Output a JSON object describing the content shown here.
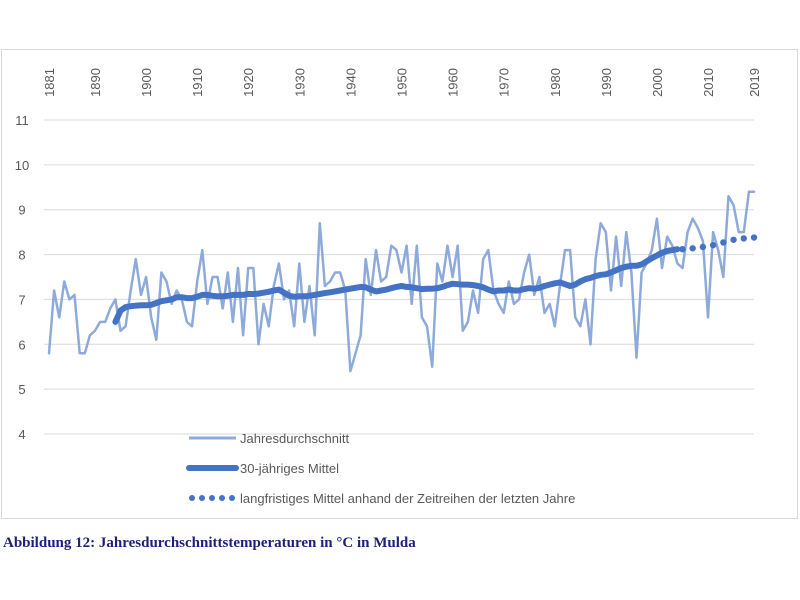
{
  "caption": "Abbildung 12: Jahresdurchschnittstemperaturen in °C in Mulda",
  "chart_data": {
    "type": "line",
    "title": "",
    "xlabel": "",
    "ylabel": "",
    "ylim": [
      4,
      11
    ],
    "xlim": [
      1881,
      2019
    ],
    "grid": true,
    "y_ticks": [
      "4",
      "5",
      "6",
      "7",
      "8",
      "9",
      "10",
      "11"
    ],
    "x_ticks": [
      "1881",
      "1890",
      "1900",
      "1910",
      "1920",
      "1930",
      "1940",
      "1950",
      "1960",
      "1970",
      "1980",
      "1990",
      "2000",
      "2010",
      "2019"
    ],
    "legend_position": "bottom",
    "colors": {
      "annual": "#8eaadb",
      "mean30": "#4472c4",
      "longterm": "#4472c4",
      "grid": "#d9d9d9",
      "caption": "#1f1f7a"
    },
    "series": [
      {
        "name": "Jahresdurchschnitt",
        "style": "thin-line",
        "x_start": 1881,
        "values": [
          5.8,
          7.2,
          6.6,
          7.4,
          7.0,
          7.1,
          5.8,
          5.8,
          6.2,
          6.3,
          6.5,
          6.5,
          6.8,
          7.0,
          6.3,
          6.4,
          7.2,
          7.9,
          7.1,
          7.5,
          6.6,
          6.1,
          7.6,
          7.4,
          6.9,
          7.2,
          7.0,
          6.5,
          6.4,
          7.4,
          8.1,
          6.9,
          7.5,
          7.5,
          6.8,
          7.6,
          6.5,
          7.7,
          6.2,
          7.7,
          7.7,
          6.0,
          6.9,
          6.4,
          7.3,
          7.8,
          7.0,
          7.2,
          6.4,
          7.8,
          6.5,
          7.3,
          6.2,
          8.7,
          7.3,
          7.4,
          7.6,
          7.6,
          7.2,
          5.4,
          5.8,
          6.2,
          7.9,
          7.1,
          8.1,
          7.4,
          7.5,
          8.2,
          8.1,
          7.6,
          8.2,
          6.9,
          8.2,
          6.6,
          6.4,
          5.5,
          7.8,
          7.4,
          8.2,
          7.5,
          8.2,
          6.3,
          6.5,
          7.2,
          6.7,
          7.9,
          8.1,
          7.2,
          6.9,
          6.7,
          7.4,
          6.9,
          7.0,
          7.6,
          8.0,
          7.1,
          7.5,
          6.7,
          6.9,
          6.4,
          7.3,
          8.1,
          8.1,
          6.6,
          6.4,
          7.0,
          6.0,
          7.9,
          8.7,
          8.5,
          7.2,
          8.4,
          7.3,
          8.5,
          7.6,
          5.7,
          7.6,
          7.8,
          8.1,
          8.8,
          7.7,
          8.4,
          8.2,
          7.8,
          7.7,
          8.5,
          8.8,
          8.6,
          8.3,
          6.6,
          8.5,
          8.1,
          7.5,
          9.3,
          9.1,
          8.5,
          8.5,
          9.4,
          9.4
        ]
      },
      {
        "name": "30-jähriges Mittel",
        "style": "thick-line",
        "x_start": 1894,
        "values": [
          6.5,
          6.75,
          6.83,
          6.85,
          6.86,
          6.87,
          6.87,
          6.88,
          6.92,
          6.96,
          6.98,
          7.0,
          7.05,
          7.05,
          7.03,
          7.03,
          7.06,
          7.1,
          7.1,
          7.08,
          7.07,
          7.07,
          7.08,
          7.1,
          7.1,
          7.1,
          7.12,
          7.12,
          7.13,
          7.15,
          7.17,
          7.2,
          7.22,
          7.15,
          7.08,
          7.06,
          7.07,
          7.07,
          7.08,
          7.1,
          7.12,
          7.14,
          7.16,
          7.18,
          7.2,
          7.22,
          7.24,
          7.26,
          7.28,
          7.27,
          7.22,
          7.18,
          7.2,
          7.22,
          7.25,
          7.28,
          7.3,
          7.28,
          7.27,
          7.25,
          7.23,
          7.24,
          7.24,
          7.25,
          7.28,
          7.32,
          7.35,
          7.34,
          7.33,
          7.33,
          7.32,
          7.3,
          7.27,
          7.22,
          7.18,
          7.2,
          7.2,
          7.22,
          7.2,
          7.2,
          7.23,
          7.25,
          7.24,
          7.26,
          7.3,
          7.33,
          7.36,
          7.38,
          7.34,
          7.3,
          7.33,
          7.4,
          7.45,
          7.48,
          7.52,
          7.55,
          7.56,
          7.6,
          7.65,
          7.7,
          7.73,
          7.75,
          7.75,
          7.78,
          7.85,
          7.92,
          7.98,
          8.04,
          8.08,
          8.1,
          8.12
        ]
      },
      {
        "name": "langfristiges Mittel anhand der Zeitreihen der letzten Jahre",
        "style": "dotted",
        "x_start": 2005,
        "values": [
          8.12,
          8.13,
          8.14,
          8.15,
          8.17,
          8.19,
          8.21,
          8.24,
          8.27,
          8.3,
          8.33,
          8.35,
          8.36,
          8.37,
          8.38
        ]
      }
    ]
  }
}
